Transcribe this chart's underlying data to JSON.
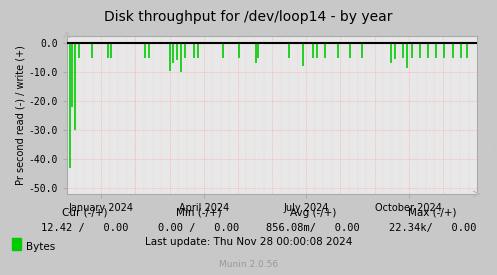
{
  "title": "Disk throughput for /dev/loop14 - by year",
  "ylabel": "Pr second read (-) / write (+)",
  "bg_color": "#c8c8c8",
  "plot_bg_color": "#e8e8e8",
  "grid_color_minor": "#ff9999",
  "grid_color_major": "#aaaaaa",
  "ylim": [
    -52.0,
    2.5
  ],
  "yticks": [
    0.0,
    -10.0,
    -20.0,
    -30.0,
    -40.0,
    -50.0
  ],
  "xtick_labels": [
    "January 2024",
    "April 2024",
    "July 2024",
    "October 2024"
  ],
  "line_color": "#00cc00",
  "zero_line_color": "#000000",
  "legend_label": "Bytes",
  "legend_color": "#00cc00",
  "footer_update": "Last update: Thu Nov 28 00:00:08 2024",
  "footer_munin": "Munin 2.0.56",
  "spike_positions": [
    0.007,
    0.013,
    0.02,
    0.028,
    0.06,
    0.1,
    0.108,
    0.19,
    0.2,
    0.25,
    0.258,
    0.268,
    0.278,
    0.288,
    0.31,
    0.32,
    0.38,
    0.42,
    0.46,
    0.465,
    0.54,
    0.575,
    0.6,
    0.61,
    0.63,
    0.66,
    0.69,
    0.72,
    0.79,
    0.8,
    0.82,
    0.83,
    0.84,
    0.86,
    0.88,
    0.9,
    0.92,
    0.94,
    0.96,
    0.975
  ],
  "spike_depths": [
    -43.0,
    -22.0,
    -30.0,
    -5.0,
    -5.0,
    -5.0,
    -5.0,
    -5.0,
    -5.0,
    -9.5,
    -7.0,
    -6.0,
    -10.0,
    -5.0,
    -5.0,
    -5.0,
    -5.0,
    -5.0,
    -7.0,
    -5.0,
    -5.0,
    -8.0,
    -5.0,
    -5.0,
    -5.0,
    -5.0,
    -5.0,
    -5.0,
    -7.0,
    -5.5,
    -5.0,
    -8.5,
    -5.0,
    -5.0,
    -5.0,
    -5.0,
    -5.0,
    -5.0,
    -5.0,
    -5.0
  ],
  "x_grid": [
    0.0833,
    0.1667,
    0.25,
    0.3333,
    0.4167,
    0.5,
    0.5833,
    0.6667,
    0.75,
    0.8333,
    0.9167
  ],
  "x_minor_grid": [
    0.0208,
    0.0417,
    0.0625,
    0.1042,
    0.125,
    0.1458,
    0.1667,
    0.1875,
    0.2083,
    0.2292,
    0.2708,
    0.2917,
    0.3125,
    0.3542,
    0.375,
    0.3958,
    0.4375,
    0.4583,
    0.4792,
    0.5208,
    0.5417,
    0.5625,
    0.6042,
    0.625,
    0.6458,
    0.6875,
    0.7083,
    0.7292,
    0.7708,
    0.7917,
    0.8125,
    0.8542,
    0.875,
    0.8958,
    0.9375,
    0.9583,
    0.9792
  ]
}
